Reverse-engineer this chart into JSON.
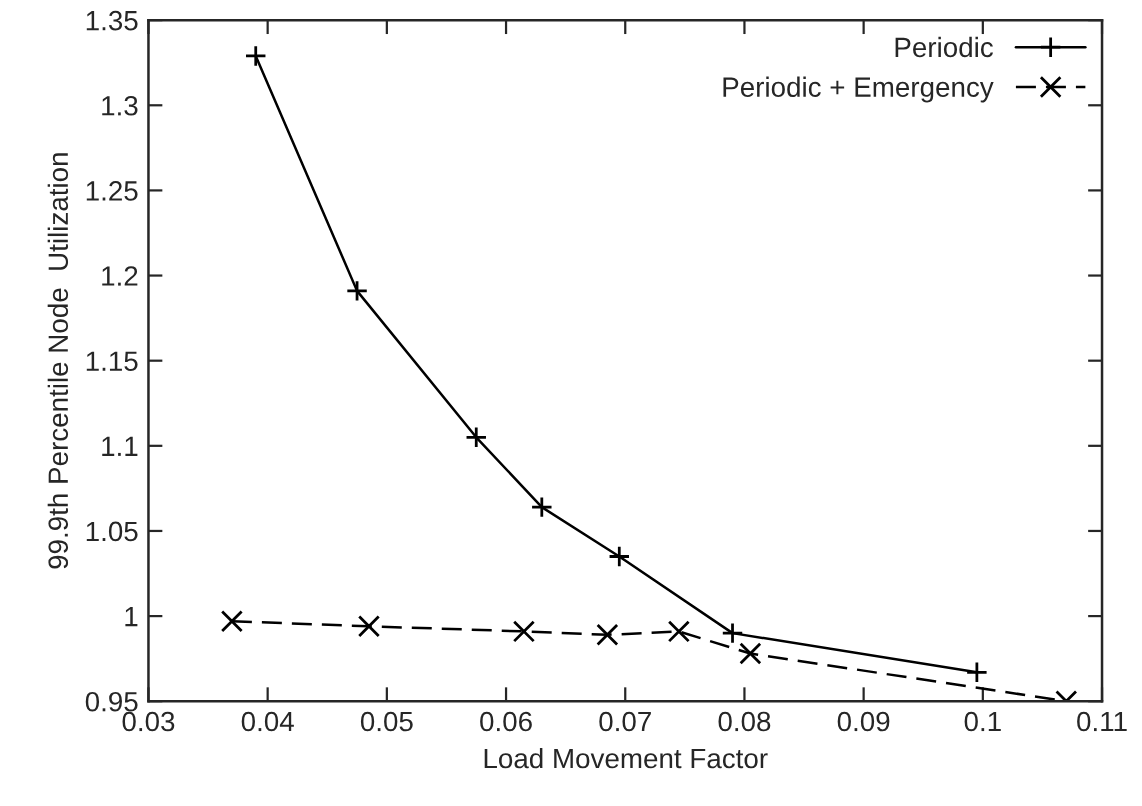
{
  "chart_data": {
    "type": "line",
    "xlabel": "Load Movement Factor",
    "ylabel": "99.9th Percentile Node  Utilization",
    "xlim": [
      0.03,
      0.11
    ],
    "xticks": [
      0.03,
      0.04,
      0.05,
      0.06,
      0.07,
      0.08,
      0.09,
      0.1,
      0.11
    ],
    "ylim": [
      0.95,
      1.35
    ],
    "yticks": [
      0.95,
      1,
      1.05,
      1.1,
      1.15,
      1.2,
      1.25,
      1.3,
      1.35
    ],
    "grid": false,
    "legend": "top right",
    "series": [
      {
        "name": "Periodic",
        "color": "#000000",
        "marker": "plus",
        "line_style": "solid",
        "x": [
          0.039,
          0.0475,
          0.0575,
          0.063,
          0.0695,
          0.079,
          0.0995
        ],
        "values": [
          1.329,
          1.191,
          1.105,
          1.064,
          1.035,
          0.99,
          0.967
        ]
      },
      {
        "name": "Periodic + Emergency",
        "color": "#000000",
        "marker": "cross",
        "line_style": "dashed",
        "x": [
          0.037,
          0.0485,
          0.0615,
          0.0685,
          0.0745,
          0.0805,
          0.107
        ],
        "values": [
          0.997,
          0.994,
          0.991,
          0.989,
          0.991,
          0.978,
          0.95
        ]
      }
    ]
  }
}
